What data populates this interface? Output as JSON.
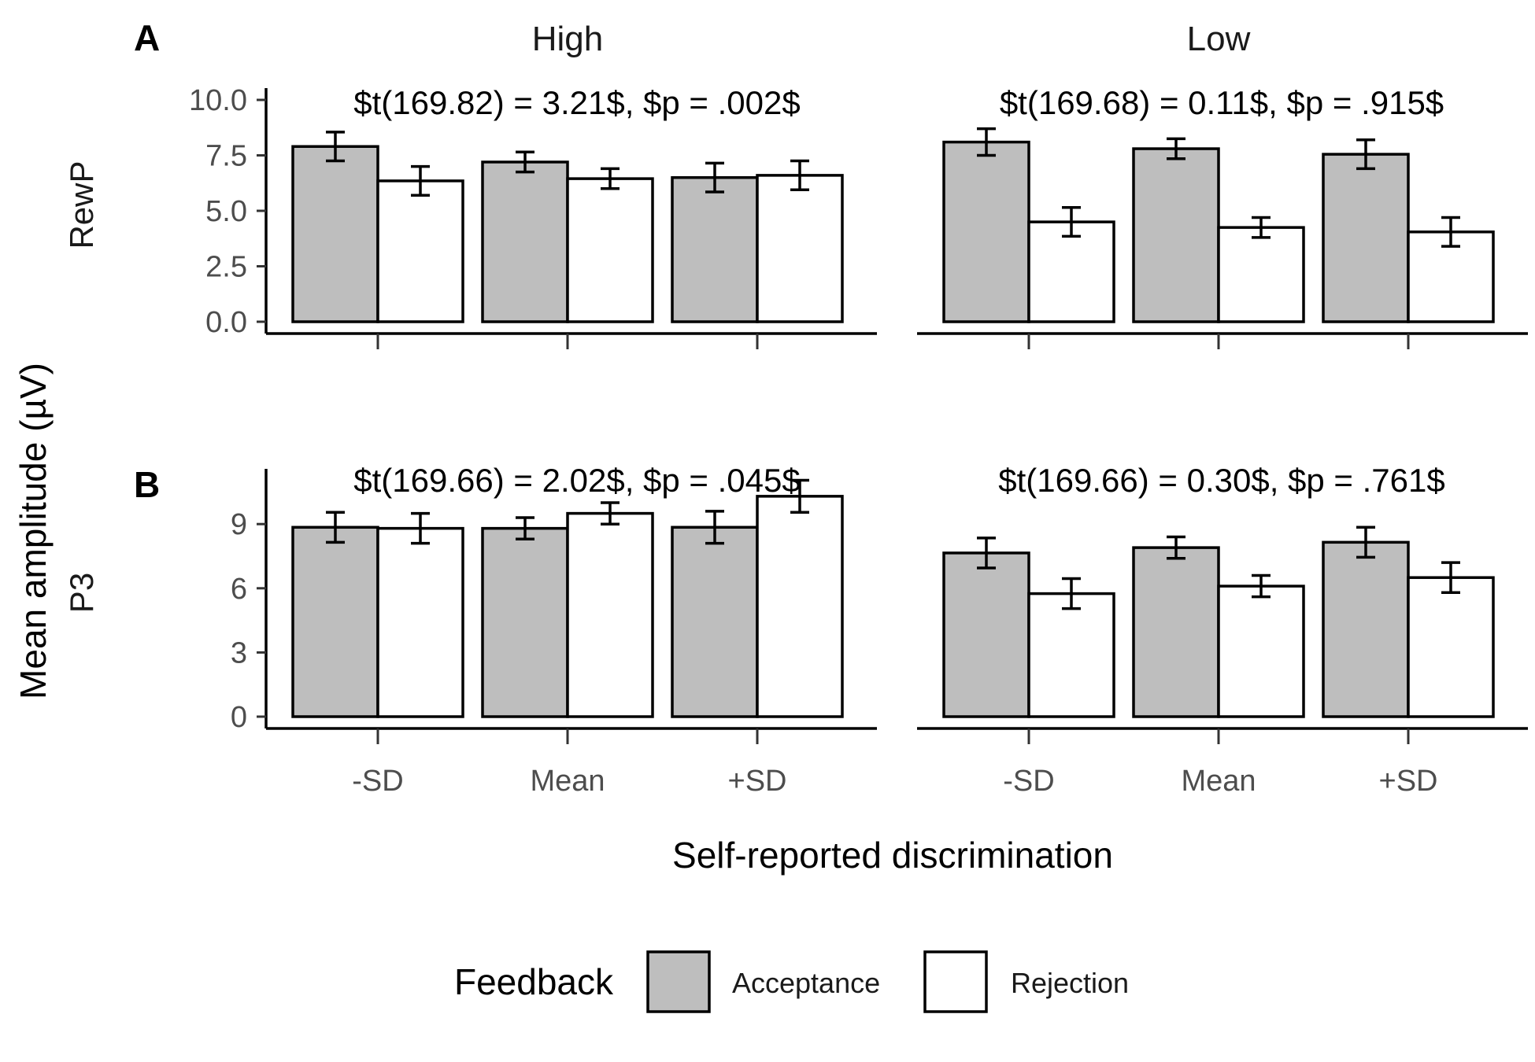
{
  "chart_data": {
    "type": "bar",
    "panel_letters": [
      "A",
      "B"
    ],
    "facets": [
      "High",
      "Low"
    ],
    "categories": [
      "-SD",
      "Mean",
      "+SD"
    ],
    "xlabel": "Self-reported discrimination",
    "ylabel": "Mean amplitude (µV)",
    "legend": {
      "title": "Feedback",
      "position": "bottom",
      "entries": [
        {
          "name": "Acceptance",
          "color": "#bebebe"
        },
        {
          "name": "Rejection",
          "color": "#ffffff"
        }
      ]
    },
    "grid": false,
    "rows": [
      {
        "letter": "A",
        "label": "RewP",
        "ylim": [
          0,
          10.5
        ],
        "yticks": [
          0,
          2.5,
          5,
          7.5,
          10
        ],
        "ytick_labels": [
          "0.0",
          "2.5",
          "5.0",
          "7.5",
          "10.0"
        ],
        "panels": [
          {
            "facet": "High",
            "annotation": "$t(169.82) = 3.21$, $p = .002$",
            "series": [
              {
                "name": "Acceptance",
                "values": [
                  7.9,
                  7.2,
                  6.5
                ],
                "errors": [
                  0.65,
                  0.45,
                  0.65
                ]
              },
              {
                "name": "Rejection",
                "values": [
                  6.35,
                  6.45,
                  6.6
                ],
                "errors": [
                  0.65,
                  0.45,
                  0.65
                ]
              }
            ]
          },
          {
            "facet": "Low",
            "annotation": "$t(169.68) = 0.11$, $p = .915$",
            "series": [
              {
                "name": "Acceptance",
                "values": [
                  8.1,
                  7.8,
                  7.55
                ],
                "errors": [
                  0.6,
                  0.45,
                  0.65
                ]
              },
              {
                "name": "Rejection",
                "values": [
                  4.5,
                  4.25,
                  4.05
                ],
                "errors": [
                  0.65,
                  0.45,
                  0.65
                ]
              }
            ]
          }
        ]
      },
      {
        "letter": "B",
        "label": "P3",
        "ylim": [
          0,
          11.5
        ],
        "yticks": [
          0,
          3,
          6,
          9
        ],
        "ytick_labels": [
          "0",
          "3",
          "6",
          "9"
        ],
        "panels": [
          {
            "facet": "High",
            "annotation": "$t(169.66) = 2.02$, $p = .045$",
            "series": [
              {
                "name": "Acceptance",
                "values": [
                  8.85,
                  8.8,
                  8.85
                ],
                "errors": [
                  0.7,
                  0.5,
                  0.75
                ]
              },
              {
                "name": "Rejection",
                "values": [
                  8.8,
                  9.5,
                  10.3
                ],
                "errors": [
                  0.7,
                  0.5,
                  0.75
                ]
              }
            ]
          },
          {
            "facet": "Low",
            "annotation": "$t(169.66) = 0.30$, $p = .761$",
            "series": [
              {
                "name": "Acceptance",
                "values": [
                  7.65,
                  7.9,
                  8.15
                ],
                "errors": [
                  0.7,
                  0.5,
                  0.7
                ]
              },
              {
                "name": "Rejection",
                "values": [
                  5.75,
                  6.1,
                  6.5
                ],
                "errors": [
                  0.7,
                  0.5,
                  0.7
                ]
              }
            ]
          }
        ]
      }
    ]
  }
}
